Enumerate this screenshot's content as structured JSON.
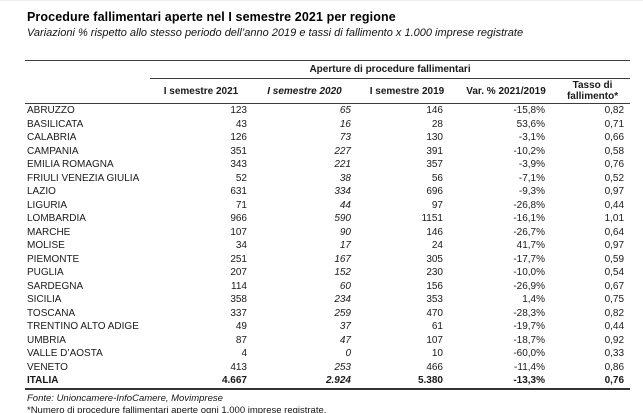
{
  "page": {
    "title": "Procedure fallimentari aperte nel I semestre 2021 per regione",
    "subtitle": "Variazioni % rispetto allo stesso periodo dell’anno 2019 e tassi di fallimento x 1.000 imprese registrate"
  },
  "chart_data": {
    "type": "table",
    "title": "Procedure fallimentari aperte nel I semestre 2021 per regione",
    "subtitle": "Variazioni % rispetto allo stesso periodo dell’anno 2019 e tassi di fallimento x 1.000 imprese registrate",
    "group_header": "Aperture di procedure fallimentari",
    "columns": [
      "I semestre 2021",
      "I semestre 2020",
      "I semestre 2019",
      "Var. % 2021/2019",
      "Tasso di fallimento*"
    ],
    "rows": [
      [
        "ABRUZZO",
        "123",
        "65",
        "146",
        "-15,8%",
        "0,82"
      ],
      [
        "BASILICATA",
        "43",
        "16",
        "28",
        "53,6%",
        "0,71"
      ],
      [
        "CALABRIA",
        "126",
        "73",
        "130",
        "-3,1%",
        "0,66"
      ],
      [
        "CAMPANIA",
        "351",
        "227",
        "391",
        "-10,2%",
        "0,58"
      ],
      [
        "EMILIA ROMAGNA",
        "343",
        "221",
        "357",
        "-3,9%",
        "0,76"
      ],
      [
        "FRIULI VENEZIA GIULIA",
        "52",
        "38",
        "56",
        "-7,1%",
        "0,52"
      ],
      [
        "LAZIO",
        "631",
        "334",
        "696",
        "-9,3%",
        "0,97"
      ],
      [
        "LIGURIA",
        "71",
        "44",
        "97",
        "-26,8%",
        "0,44"
      ],
      [
        "LOMBARDIA",
        "966",
        "590",
        "1151",
        "-16,1%",
        "1,01"
      ],
      [
        "MARCHE",
        "107",
        "90",
        "146",
        "-26,7%",
        "0,64"
      ],
      [
        "MOLISE",
        "34",
        "17",
        "24",
        "41,7%",
        "0,97"
      ],
      [
        "PIEMONTE",
        "251",
        "167",
        "305",
        "-17,7%",
        "0,59"
      ],
      [
        "PUGLIA",
        "207",
        "152",
        "230",
        "-10,0%",
        "0,54"
      ],
      [
        "SARDEGNA",
        "114",
        "60",
        "156",
        "-26,9%",
        "0,67"
      ],
      [
        "SICILIA",
        "358",
        "234",
        "353",
        "1,4%",
        "0,75"
      ],
      [
        "TOSCANA",
        "337",
        "259",
        "470",
        "-28,3%",
        "0,82"
      ],
      [
        "TRENTINO ALTO ADIGE",
        "49",
        "37",
        "61",
        "-19,7%",
        "0,44"
      ],
      [
        "UMBRIA",
        "87",
        "47",
        "107",
        "-18,7%",
        "0,92"
      ],
      [
        "VALLE D’AOSTA",
        "4",
        "0",
        "10",
        "-60,0%",
        "0,33"
      ],
      [
        "VENETO",
        "413",
        "253",
        "466",
        "-11,4%",
        "0,86"
      ]
    ],
    "total": [
      "ITALIA",
      "4.667",
      "2.924",
      "5.380",
      "-13,3%",
      "0,76"
    ],
    "source": "Fonte: Unioncamere-InfoCamere, Movimprese",
    "note": "*Numero di procedure fallimentari aperte ogni 1.000 imprese registrate."
  }
}
